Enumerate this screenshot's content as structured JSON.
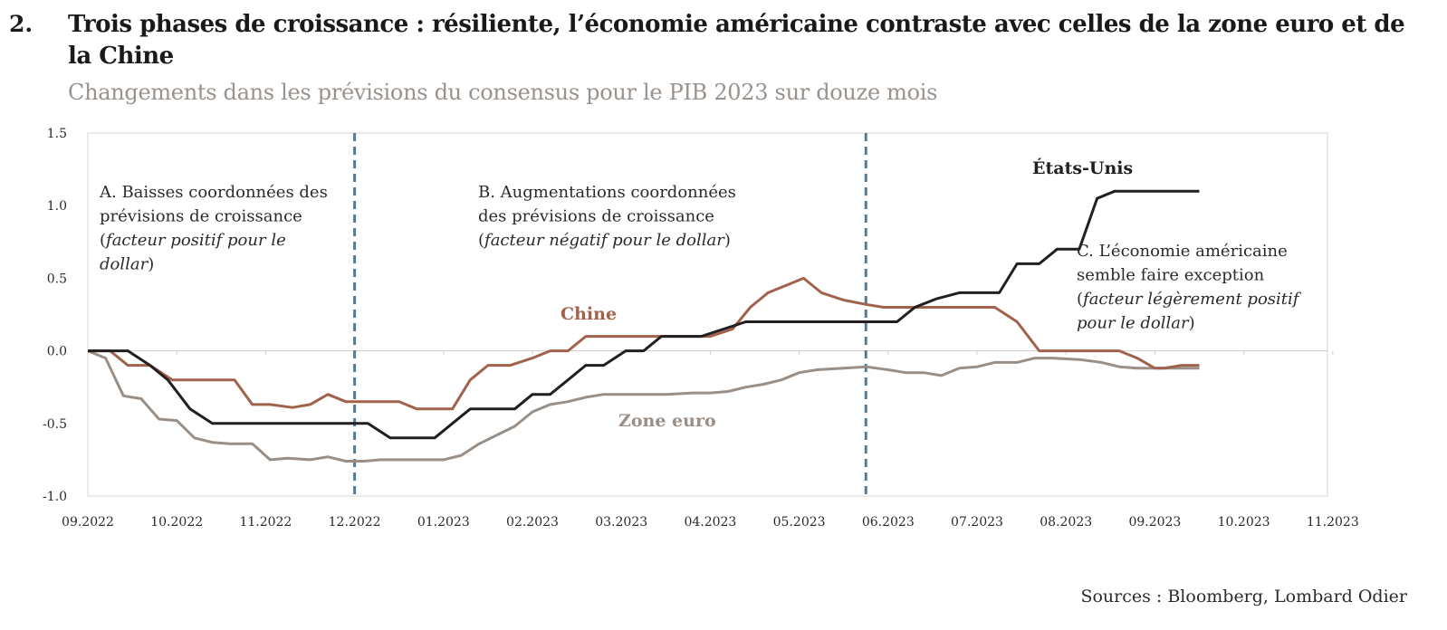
{
  "figure_number": "2.",
  "title": "Trois phases de croissance : résiliente, l’économie américaine contraste avec celles de la zone euro et de la Chine",
  "subtitle": "Changements dans les prévisions du consensus pour le PIB 2023 sur douze mois",
  "source": "Sources : Bloomberg, Lombard Odier",
  "chart_data": {
    "type": "line",
    "ylim": [
      -1.0,
      1.5
    ],
    "yticks": [
      "1.5",
      "1.0",
      "0.5",
      "0.0",
      "-0.5",
      "-1.0"
    ],
    "x_tick_labels": [
      "09.2022",
      "10.2022",
      "11.2022",
      "12.2022",
      "01.2023",
      "02.2023",
      "03.2023",
      "04.2023",
      "05.2023",
      "06.2023",
      "07.2023",
      "08.2023",
      "09.2023",
      "10.2023",
      "11.2023"
    ],
    "grid": false,
    "phase_dividers_month": [
      3.0,
      8.75
    ],
    "annotations": {
      "a_lines": [
        "A. Baisses coordonnées des",
        "prévisions de croissance"
      ],
      "a_italic_lines": [
        "facteur positif pour le",
        "dollar"
      ],
      "b_lines": [
        "B. Augmentations coordonnées",
        "des prévisions de croissance"
      ],
      "b_italic_lines": [
        "facteur négatif pour le dollar"
      ],
      "c_lines": [
        "C. L’économie américaine",
        "semble faire exception"
      ],
      "c_italic_lines": [
        "facteur légèrement positif",
        "pour le dollar"
      ]
    },
    "series": [
      {
        "name": "États-Unis",
        "color": "#231f20",
        "points": [
          [
            0,
            0
          ],
          [
            0.25,
            0
          ],
          [
            0.45,
            0
          ],
          [
            0.7,
            -0.1
          ],
          [
            0.9,
            -0.2
          ],
          [
            1.15,
            -0.4
          ],
          [
            1.4,
            -0.5
          ],
          [
            2.0,
            -0.5
          ],
          [
            3.0,
            -0.5
          ],
          [
            3.15,
            -0.5
          ],
          [
            3.4,
            -0.6
          ],
          [
            3.9,
            -0.6
          ],
          [
            4.1,
            -0.5
          ],
          [
            4.3,
            -0.4
          ],
          [
            4.8,
            -0.4
          ],
          [
            5.0,
            -0.3
          ],
          [
            5.2,
            -0.3
          ],
          [
            5.6,
            -0.1
          ],
          [
            5.8,
            -0.1
          ],
          [
            6.05,
            0
          ],
          [
            6.25,
            0
          ],
          [
            6.45,
            0.1
          ],
          [
            6.9,
            0.1
          ],
          [
            7.4,
            0.2
          ],
          [
            7.9,
            0.2
          ],
          [
            8.5,
            0.2
          ],
          [
            9.1,
            0.2
          ],
          [
            9.3,
            0.3
          ],
          [
            9.55,
            0.36
          ],
          [
            9.8,
            0.4
          ],
          [
            10.25,
            0.4
          ],
          [
            10.45,
            0.6
          ],
          [
            10.7,
            0.6
          ],
          [
            10.9,
            0.7
          ],
          [
            11.15,
            0.7
          ],
          [
            11.35,
            1.05
          ],
          [
            11.55,
            1.1
          ],
          [
            11.8,
            1.1
          ],
          [
            12.5,
            1.1
          ]
        ]
      },
      {
        "name": "Chine",
        "color": "#a0624a",
        "points": [
          [
            0,
            0
          ],
          [
            0.25,
            0
          ],
          [
            0.45,
            -0.1
          ],
          [
            0.7,
            -0.1
          ],
          [
            0.95,
            -0.2
          ],
          [
            1.65,
            -0.2
          ],
          [
            1.85,
            -0.37
          ],
          [
            2.05,
            -0.37
          ],
          [
            2.3,
            -0.39
          ],
          [
            2.5,
            -0.37
          ],
          [
            2.7,
            -0.3
          ],
          [
            2.9,
            -0.35
          ],
          [
            3.1,
            -0.35
          ],
          [
            3.5,
            -0.35
          ],
          [
            3.7,
            -0.4
          ],
          [
            4.1,
            -0.4
          ],
          [
            4.3,
            -0.2
          ],
          [
            4.5,
            -0.1
          ],
          [
            4.75,
            -0.1
          ],
          [
            5.0,
            -0.05
          ],
          [
            5.2,
            0
          ],
          [
            5.4,
            0
          ],
          [
            5.6,
            0.1
          ],
          [
            6.0,
            0.1
          ],
          [
            6.4,
            0.1
          ],
          [
            7.0,
            0.1
          ],
          [
            7.25,
            0.15
          ],
          [
            7.45,
            0.3
          ],
          [
            7.65,
            0.4
          ],
          [
            7.85,
            0.45
          ],
          [
            8.05,
            0.5
          ],
          [
            8.25,
            0.4
          ],
          [
            8.5,
            0.35
          ],
          [
            8.75,
            0.32
          ],
          [
            8.95,
            0.3
          ],
          [
            9.3,
            0.3
          ],
          [
            10.2,
            0.3
          ],
          [
            10.45,
            0.2
          ],
          [
            10.7,
            0
          ],
          [
            10.9,
            0
          ],
          [
            11.6,
            0
          ],
          [
            11.8,
            -0.05
          ],
          [
            12.0,
            -0.12
          ],
          [
            12.1,
            -0.12
          ],
          [
            12.3,
            -0.1
          ],
          [
            12.5,
            -0.1
          ]
        ]
      },
      {
        "name": "Zone euro",
        "color": "#9a8f87",
        "points": [
          [
            0,
            0
          ],
          [
            0.2,
            -0.05
          ],
          [
            0.4,
            -0.31
          ],
          [
            0.6,
            -0.33
          ],
          [
            0.8,
            -0.47
          ],
          [
            1.0,
            -0.48
          ],
          [
            1.2,
            -0.6
          ],
          [
            1.4,
            -0.63
          ],
          [
            1.6,
            -0.64
          ],
          [
            1.85,
            -0.64
          ],
          [
            2.05,
            -0.75
          ],
          [
            2.25,
            -0.74
          ],
          [
            2.5,
            -0.75
          ],
          [
            2.7,
            -0.73
          ],
          [
            2.9,
            -0.76
          ],
          [
            3.1,
            -0.76
          ],
          [
            3.3,
            -0.75
          ],
          [
            3.7,
            -0.75
          ],
          [
            4.0,
            -0.75
          ],
          [
            4.2,
            -0.72
          ],
          [
            4.4,
            -0.64
          ],
          [
            4.6,
            -0.58
          ],
          [
            4.8,
            -0.52
          ],
          [
            5.0,
            -0.42
          ],
          [
            5.2,
            -0.37
          ],
          [
            5.4,
            -0.35
          ],
          [
            5.6,
            -0.32
          ],
          [
            5.8,
            -0.3
          ],
          [
            6.0,
            -0.3
          ],
          [
            6.5,
            -0.3
          ],
          [
            6.8,
            -0.29
          ],
          [
            7.0,
            -0.29
          ],
          [
            7.2,
            -0.28
          ],
          [
            7.4,
            -0.25
          ],
          [
            7.6,
            -0.23
          ],
          [
            7.8,
            -0.2
          ],
          [
            8.0,
            -0.15
          ],
          [
            8.2,
            -0.13
          ],
          [
            8.5,
            -0.12
          ],
          [
            8.75,
            -0.11
          ],
          [
            9.0,
            -0.13
          ],
          [
            9.2,
            -0.15
          ],
          [
            9.4,
            -0.15
          ],
          [
            9.6,
            -0.17
          ],
          [
            9.8,
            -0.12
          ],
          [
            10.0,
            -0.11
          ],
          [
            10.2,
            -0.08
          ],
          [
            10.45,
            -0.08
          ],
          [
            10.65,
            -0.05
          ],
          [
            10.85,
            -0.05
          ],
          [
            11.15,
            -0.06
          ],
          [
            11.4,
            -0.08
          ],
          [
            11.6,
            -0.11
          ],
          [
            11.8,
            -0.12
          ],
          [
            12.0,
            -0.12
          ],
          [
            12.5,
            -0.12
          ]
        ]
      }
    ]
  }
}
